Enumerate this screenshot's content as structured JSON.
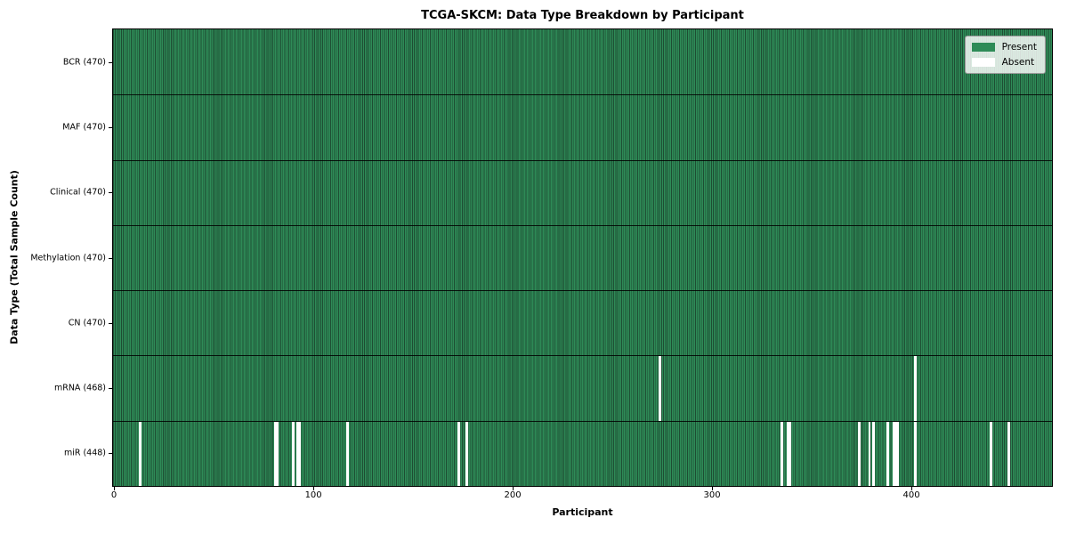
{
  "title": "TCGA-SKCM: Data Type Breakdown by Participant",
  "legend": {
    "present_label": "Present",
    "absent_label": "Absent"
  },
  "colors": {
    "present": "#2e8b57",
    "present_edge": "#1e4d33",
    "absent": "#ffffff",
    "row_separator": "#1a1a1a",
    "axis": "#000000"
  },
  "chart_data": {
    "type": "heatmap",
    "title": "TCGA-SKCM: Data Type Breakdown by Participant",
    "xlabel": "Participant",
    "ylabel": "Data Type (Total Sample Count)",
    "x_ticks": [
      0,
      100,
      200,
      300,
      400
    ],
    "xlim": [
      -0.5,
      470.5
    ],
    "n_participants": 470,
    "grid": false,
    "legend_labels": [
      "Present",
      "Absent"
    ],
    "legend_position": "upper right",
    "rows": [
      {
        "data_type": "BCR",
        "label": "BCR (470)",
        "present_count": 470,
        "absent_participants": []
      },
      {
        "data_type": "MAF",
        "label": "MAF (470)",
        "present_count": 470,
        "absent_participants": []
      },
      {
        "data_type": "Clinical",
        "label": "Clinical (470)",
        "present_count": 470,
        "absent_participants": []
      },
      {
        "data_type": "Methylation",
        "label": "Methylation (470)",
        "present_count": 470,
        "absent_participants": []
      },
      {
        "data_type": "CN",
        "label": "CN (470)",
        "present_count": 470,
        "absent_participants": []
      },
      {
        "data_type": "mRNA",
        "label": "mRNA (468)",
        "present_count": 468,
        "absent_participants": [
          274,
          402
        ]
      },
      {
        "data_type": "miR",
        "label": "miR (448)",
        "present_count": 448,
        "absent_participants": [
          13,
          81,
          82,
          90,
          92,
          93,
          117,
          173,
          177,
          335,
          338,
          339,
          374,
          379,
          381,
          388,
          391,
          392,
          393,
          402,
          440,
          449
        ]
      }
    ]
  }
}
